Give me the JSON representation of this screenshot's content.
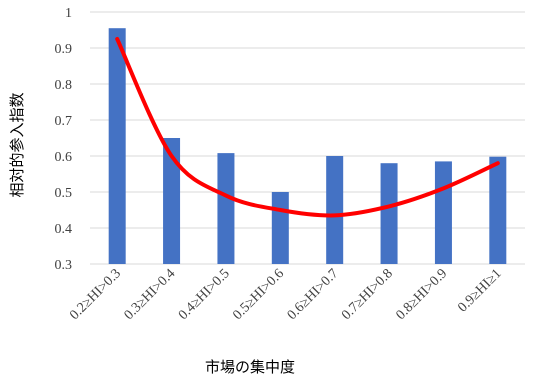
{
  "chart_data": {
    "type": "bar",
    "x_label": "市場の集中度",
    "y_label": "相対的参入指数",
    "categories": [
      "0.2≥HI>0.3",
      "0.3≥HI>0.4",
      "0.4≥HI>0.5",
      "0.5≥HI>0.6",
      "0.6≥HI>0.7",
      "0.7≥HI>0.8",
      "0.8≥HI>0.9",
      "0.9≥HI≥1"
    ],
    "series": [
      {
        "color": "#4472c4",
        "values": [
          0.955,
          0.65,
          0.608,
          0.5,
          0.6,
          0.58,
          0.585,
          0.598
        ]
      },
      {
        "type": "line",
        "color": "#ff0000",
        "values": [
          0.925,
          0.6,
          0.49,
          0.45,
          0.435,
          0.46,
          0.51,
          0.58
        ]
      }
    ],
    "ylim": [
      0.3,
      1
    ],
    "yticks": [
      0.3,
      0.4,
      0.5,
      0.6,
      0.7,
      0.8,
      0.9,
      1
    ],
    "grid": true
  }
}
